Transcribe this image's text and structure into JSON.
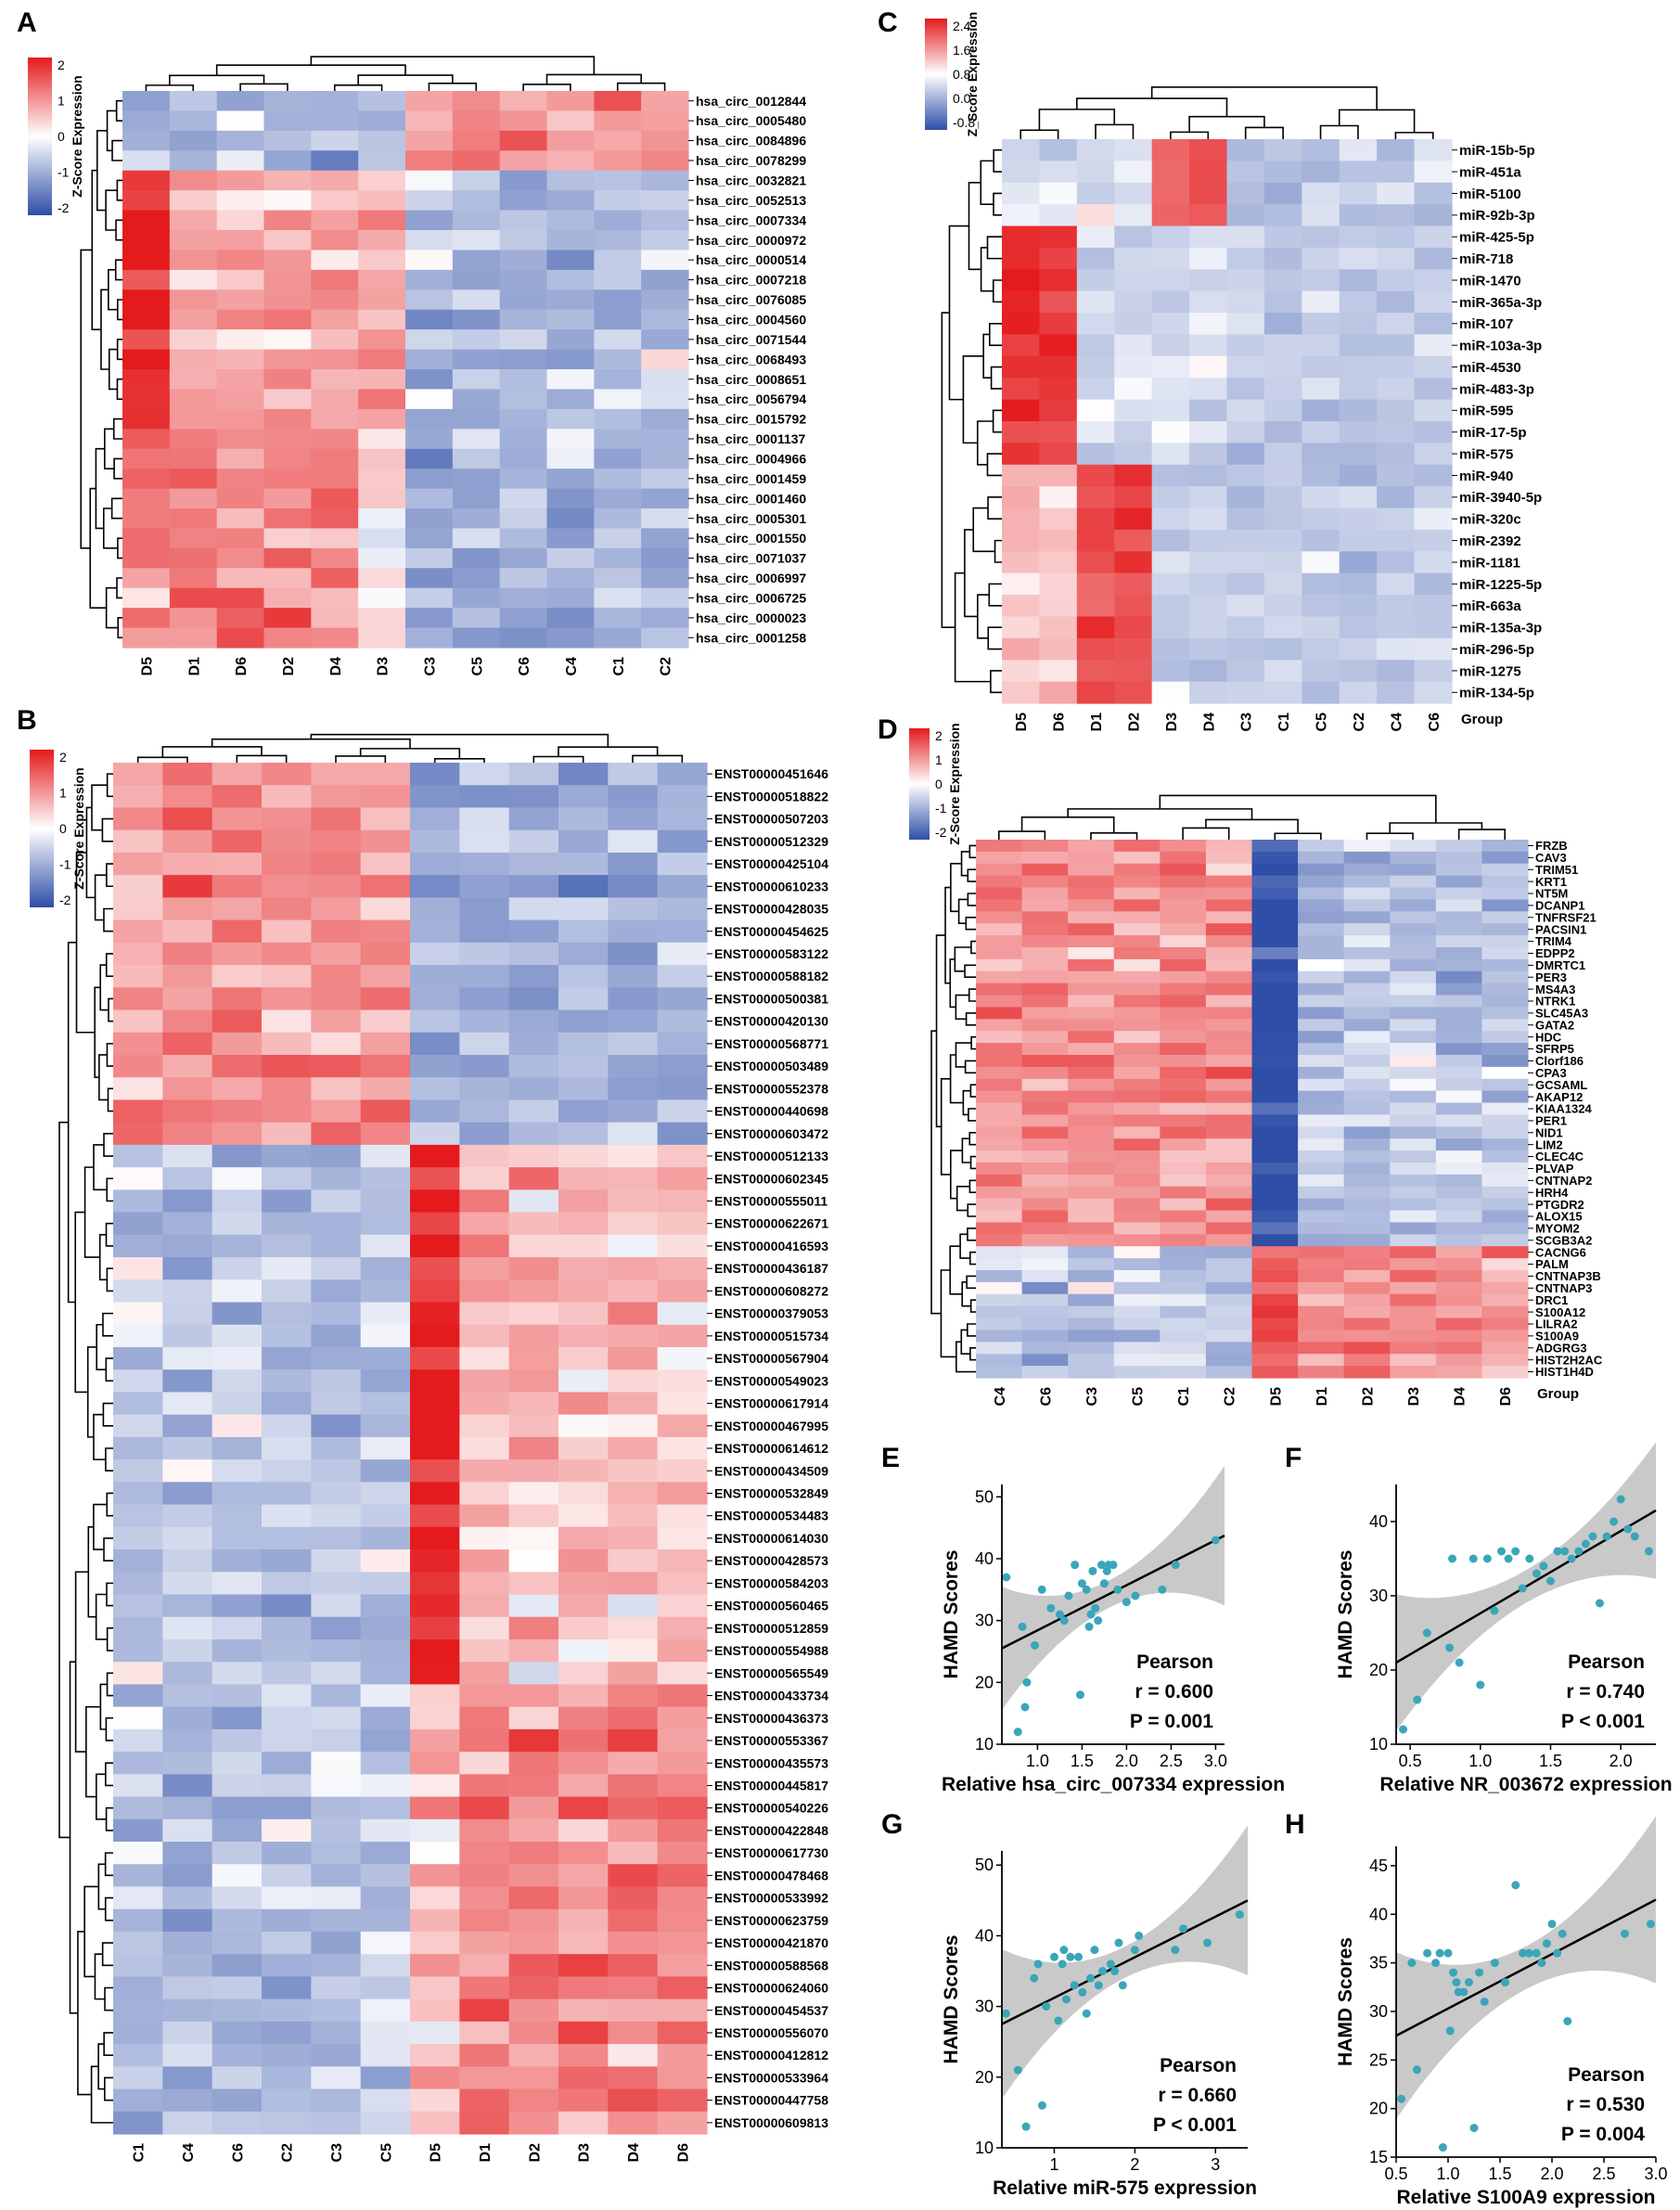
{
  "colors": {
    "high": "#e41a1c",
    "mid": "#ffffff",
    "low": "#2e4ea8",
    "scatter_point": "#3aa6b9",
    "ci_band": "#bfbfbf"
  },
  "panels": {
    "A": {
      "label": "A",
      "legend_title": "Z-Score Expression",
      "legend_ticks": [
        "2",
        "1",
        "0",
        "-1",
        "-2"
      ],
      "columns": [
        "D5",
        "D1",
        "D6",
        "D2",
        "D4",
        "D3",
        "C3",
        "C5",
        "C6",
        "C4",
        "C1",
        "C2"
      ],
      "rows": [
        "hsa_circ_0012844",
        "hsa_circ_0005480",
        "hsa_circ_0084896",
        "hsa_circ_0078299",
        "hsa_circ_0032821",
        "hsa_circ_0052513",
        "hsa_circ_0007334",
        "hsa_circ_0000972",
        "hsa_circ_0000514",
        "hsa_circ_0007218",
        "hsa_circ_0076085",
        "hsa_circ_0004560",
        "hsa_circ_0071544",
        "hsa_circ_0068493",
        "hsa_circ_0008651",
        "hsa_circ_0056794",
        "hsa_circ_0015792",
        "hsa_circ_0001137",
        "hsa_circ_0004966",
        "hsa_circ_0001459",
        "hsa_circ_0001460",
        "hsa_circ_0005301",
        "hsa_circ_0001550",
        "hsa_circ_0071037",
        "hsa_circ_0006997",
        "hsa_circ_0006725",
        "hsa_circ_0000023",
        "hsa_circ_0001258"
      ]
    },
    "B": {
      "label": "B",
      "legend_title": "Z-Score Expression",
      "legend_ticks": [
        "2",
        "1",
        "0",
        "-1",
        "-2"
      ],
      "columns": [
        "C1",
        "C4",
        "C6",
        "C2",
        "C3",
        "C5",
        "D5",
        "D1",
        "D2",
        "D3",
        "D4",
        "D6"
      ],
      "rows": [
        "ENST00000451646",
        "ENST00000518822",
        "ENST00000507203",
        "ENST00000512329",
        "ENST00000425104",
        "ENST00000610233",
        "ENST00000428035",
        "ENST00000454625",
        "ENST00000583122",
        "ENST00000588182",
        "ENST00000500381",
        "ENST00000420130",
        "ENST00000568771",
        "ENST00000503489",
        "ENST00000552378",
        "ENST00000440698",
        "ENST00000603472",
        "ENST00000512133",
        "ENST00000602345",
        "ENST00000555011",
        "ENST00000622671",
        "ENST00000416593",
        "ENST00000436187",
        "ENST00000608272",
        "ENST00000379053",
        "ENST00000515734",
        "ENST00000567904",
        "ENST00000549023",
        "ENST00000617914",
        "ENST00000467995",
        "ENST00000614612",
        "ENST00000434509",
        "ENST00000532849",
        "ENST00000534483",
        "ENST00000614030",
        "ENST00000428573",
        "ENST00000584203",
        "ENST00000560465",
        "ENST00000512859",
        "ENST00000554988",
        "ENST00000565549",
        "ENST00000433734",
        "ENST00000436373",
        "ENST00000553367",
        "ENST00000435573",
        "ENST00000445817",
        "ENST00000540226",
        "ENST00000422848",
        "ENST00000617730",
        "ENST00000478468",
        "ENST00000533992",
        "ENST00000623759",
        "ENST00000421870",
        "ENST00000588568",
        "ENST00000624060",
        "ENST00000454537",
        "ENST00000556070",
        "ENST00000412812",
        "ENST00000533964",
        "ENST00000447758",
        "ENST00000609813"
      ]
    },
    "C": {
      "label": "C",
      "legend_title": "Z_Score Expression",
      "legend_ticks": [
        "2.4",
        "1.6",
        "0.8",
        "0.0",
        "-0.8"
      ],
      "columns": [
        "D5",
        "D6",
        "D1",
        "D2",
        "D3",
        "D4",
        "C3",
        "C1",
        "C5",
        "C2",
        "C4",
        "C6"
      ],
      "group_label": "Group",
      "rows": [
        "miR-15b-5p",
        "miR-451a",
        "miR-5100",
        "miR-92b-3p",
        "miR-425-5p",
        "miR-718",
        "miR-1470",
        "miR-365a-3p",
        "miR-107",
        "miR-103a-3p",
        "miR-4530",
        "miR-483-3p",
        "miR-595",
        "miR-17-5p",
        "miR-575",
        "miR-940",
        "miR-3940-5p",
        "miR-320c",
        "miR-2392",
        "miR-1181",
        "miR-1225-5p",
        "miR-663a",
        "miR-135a-3p",
        "miR-296-5p",
        "miR-1275",
        "miR-134-5p"
      ]
    },
    "D": {
      "label": "D",
      "legend_title": "Z-Score Expression",
      "legend_ticks": [
        "2",
        "1",
        "0",
        "-1",
        "-2"
      ],
      "columns": [
        "C4",
        "C6",
        "C3",
        "C5",
        "C1",
        "C2",
        "D5",
        "D1",
        "D2",
        "D3",
        "D4",
        "D6"
      ],
      "group_label": "Group",
      "rows": [
        "FRZB",
        "CAV3",
        "TRIM51",
        "KRT1",
        "NT5M",
        "DCANP1",
        "TNFRSF21",
        "PACSIN1",
        "TRIM4",
        "EDPP2",
        "DMRTC1",
        "PER3",
        "MS4A3",
        "NTRK1",
        "SLC45A3",
        "GATA2",
        "HDC",
        "SFRP5",
        "Clorf186",
        "CPA3",
        "GCSAML",
        "AKAP12",
        "KIAA1324",
        "PER1",
        "NID1",
        "LIM2",
        "CLEC4C",
        "PLVAP",
        "CNTNAP2",
        "HRH4",
        "PTGDR2",
        "ALOX15",
        "MYOM2",
        "SCGB3A2",
        "CACNG6",
        "PALM",
        "CNTNAP3B",
        "CNTNAP3",
        "DRC1",
        "S100A12",
        "LILRA2",
        "S100A9",
        "ADGRG3",
        "HIST2H2AC",
        "HIST1H4D"
      ]
    },
    "E": {
      "label": "E",
      "stat_title": "Pearson",
      "r_text": "r = 0.600",
      "p_text": "P = 0.001"
    },
    "F": {
      "label": "F",
      "stat_title": "Pearson",
      "r_text": "r = 0.740",
      "p_text": "P < 0.001"
    },
    "G": {
      "label": "G",
      "stat_title": "Pearson",
      "r_text": "r = 0.660",
      "p_text": "P < 0.001"
    },
    "H": {
      "label": "H",
      "stat_title": "Pearson",
      "r_text": "r = 0.530",
      "p_text": "P = 0.004"
    }
  },
  "chart_data": [
    {
      "panel": "E",
      "type": "scatter",
      "xlabel": "Relative hsa_circ_007334 expression",
      "ylabel": "HAMD Scores",
      "xlim": [
        0.6,
        3.1
      ],
      "ylim": [
        10,
        52
      ],
      "xticks": [
        "1.0",
        "1.5",
        "2.0",
        "2.5",
        "3.0"
      ],
      "yticks": [
        "10",
        "20",
        "30",
        "40",
        "50"
      ],
      "x": [
        0.65,
        0.78,
        0.83,
        0.86,
        0.88,
        0.97,
        1.05,
        1.15,
        1.25,
        1.3,
        1.35,
        1.42,
        1.48,
        1.5,
        1.55,
        1.58,
        1.6,
        1.62,
        1.65,
        1.68,
        1.72,
        1.75,
        1.78,
        1.8,
        1.85,
        1.9,
        2.0,
        2.1,
        2.4,
        2.55,
        3.0
      ],
      "y": [
        37,
        12,
        29,
        16,
        20,
        26,
        35,
        32,
        31,
        30,
        34,
        39,
        18,
        36,
        35,
        29,
        31,
        38,
        32,
        30,
        39,
        36,
        38,
        39,
        39,
        35,
        33,
        34,
        35,
        39,
        43
      ],
      "fit": {
        "x": [
          0.6,
          3.0
        ],
        "y": [
          25.5,
          43
        ]
      }
    },
    {
      "panel": "F",
      "type": "scatter",
      "xlabel": "Relative NR_003672 expression",
      "ylabel": "HAMD Scores",
      "xlim": [
        0.4,
        2.25
      ],
      "ylim": [
        10,
        45
      ],
      "xticks": [
        "0.5",
        "1.0",
        "1.5",
        "2.0"
      ],
      "yticks": [
        "10",
        "20",
        "30",
        "40"
      ],
      "x": [
        0.45,
        0.55,
        0.62,
        0.78,
        0.8,
        0.85,
        0.95,
        1.0,
        1.05,
        1.1,
        1.15,
        1.2,
        1.25,
        1.3,
        1.35,
        1.4,
        1.45,
        1.5,
        1.55,
        1.6,
        1.65,
        1.7,
        1.75,
        1.8,
        1.85,
        1.9,
        1.95,
        2.0,
        2.05,
        2.1,
        2.2
      ],
      "y": [
        12,
        16,
        25,
        23,
        35,
        21,
        35,
        18,
        35,
        28,
        36,
        35,
        36,
        31,
        35,
        33,
        34,
        32,
        36,
        36,
        35,
        36,
        37,
        38,
        29,
        38,
        40,
        43,
        39,
        38,
        36
      ],
      "fit": {
        "x": [
          0.4,
          2.25
        ],
        "y": [
          21,
          41.5
        ]
      }
    },
    {
      "panel": "G",
      "type": "scatter",
      "xlabel": "Relative miR-575 expression",
      "ylabel": "HAMD Scores",
      "xlim": [
        0.35,
        3.4
      ],
      "ylim": [
        10,
        52
      ],
      "xticks": [
        "1",
        "2",
        "3"
      ],
      "yticks": [
        "10",
        "20",
        "30",
        "40",
        "50"
      ],
      "x": [
        0.4,
        0.55,
        0.65,
        0.75,
        0.8,
        0.85,
        0.9,
        1.0,
        1.05,
        1.1,
        1.12,
        1.15,
        1.2,
        1.25,
        1.3,
        1.35,
        1.4,
        1.45,
        1.5,
        1.55,
        1.6,
        1.7,
        1.75,
        1.8,
        1.85,
        2.0,
        2.05,
        2.5,
        2.6,
        2.9,
        3.3
      ],
      "y": [
        29,
        21,
        13,
        34,
        36,
        16,
        30,
        37,
        28,
        36,
        38,
        31,
        37,
        33,
        37,
        32,
        29,
        34,
        38,
        33,
        35,
        36,
        35,
        39,
        33,
        38,
        40,
        38,
        41,
        39,
        43
      ],
      "fit": {
        "x": [
          0.35,
          3.4
        ],
        "y": [
          27.5,
          45
        ]
      }
    },
    {
      "panel": "H",
      "type": "scatter",
      "xlabel": "Relative S100A9 expression",
      "ylabel": "HAMD Scores",
      "xlim": [
        0.5,
        3.0
      ],
      "ylim": [
        15,
        47
      ],
      "xticks": [
        "0.5",
        "1.0",
        "1.5",
        "2.0",
        "2.5",
        "3.0"
      ],
      "yticks": [
        "15",
        "20",
        "25",
        "30",
        "35",
        "40",
        "45"
      ],
      "x": [
        0.55,
        0.65,
        0.7,
        0.8,
        0.88,
        0.92,
        0.95,
        1.0,
        1.02,
        1.05,
        1.08,
        1.1,
        1.15,
        1.2,
        1.25,
        1.3,
        1.35,
        1.45,
        1.55,
        1.65,
        1.72,
        1.78,
        1.85,
        1.9,
        1.95,
        2.0,
        2.05,
        2.1,
        2.15,
        2.7,
        2.95
      ],
      "y": [
        21,
        35,
        24,
        36,
        35,
        36,
        16,
        36,
        28,
        34,
        33,
        32,
        32,
        33,
        18,
        34,
        31,
        35,
        33,
        43,
        36,
        36,
        36,
        35,
        37,
        39,
        36,
        38,
        29,
        38,
        39
      ],
      "fit": {
        "x": [
          0.5,
          3.0
        ],
        "y": [
          27.5,
          41.5
        ]
      }
    }
  ]
}
